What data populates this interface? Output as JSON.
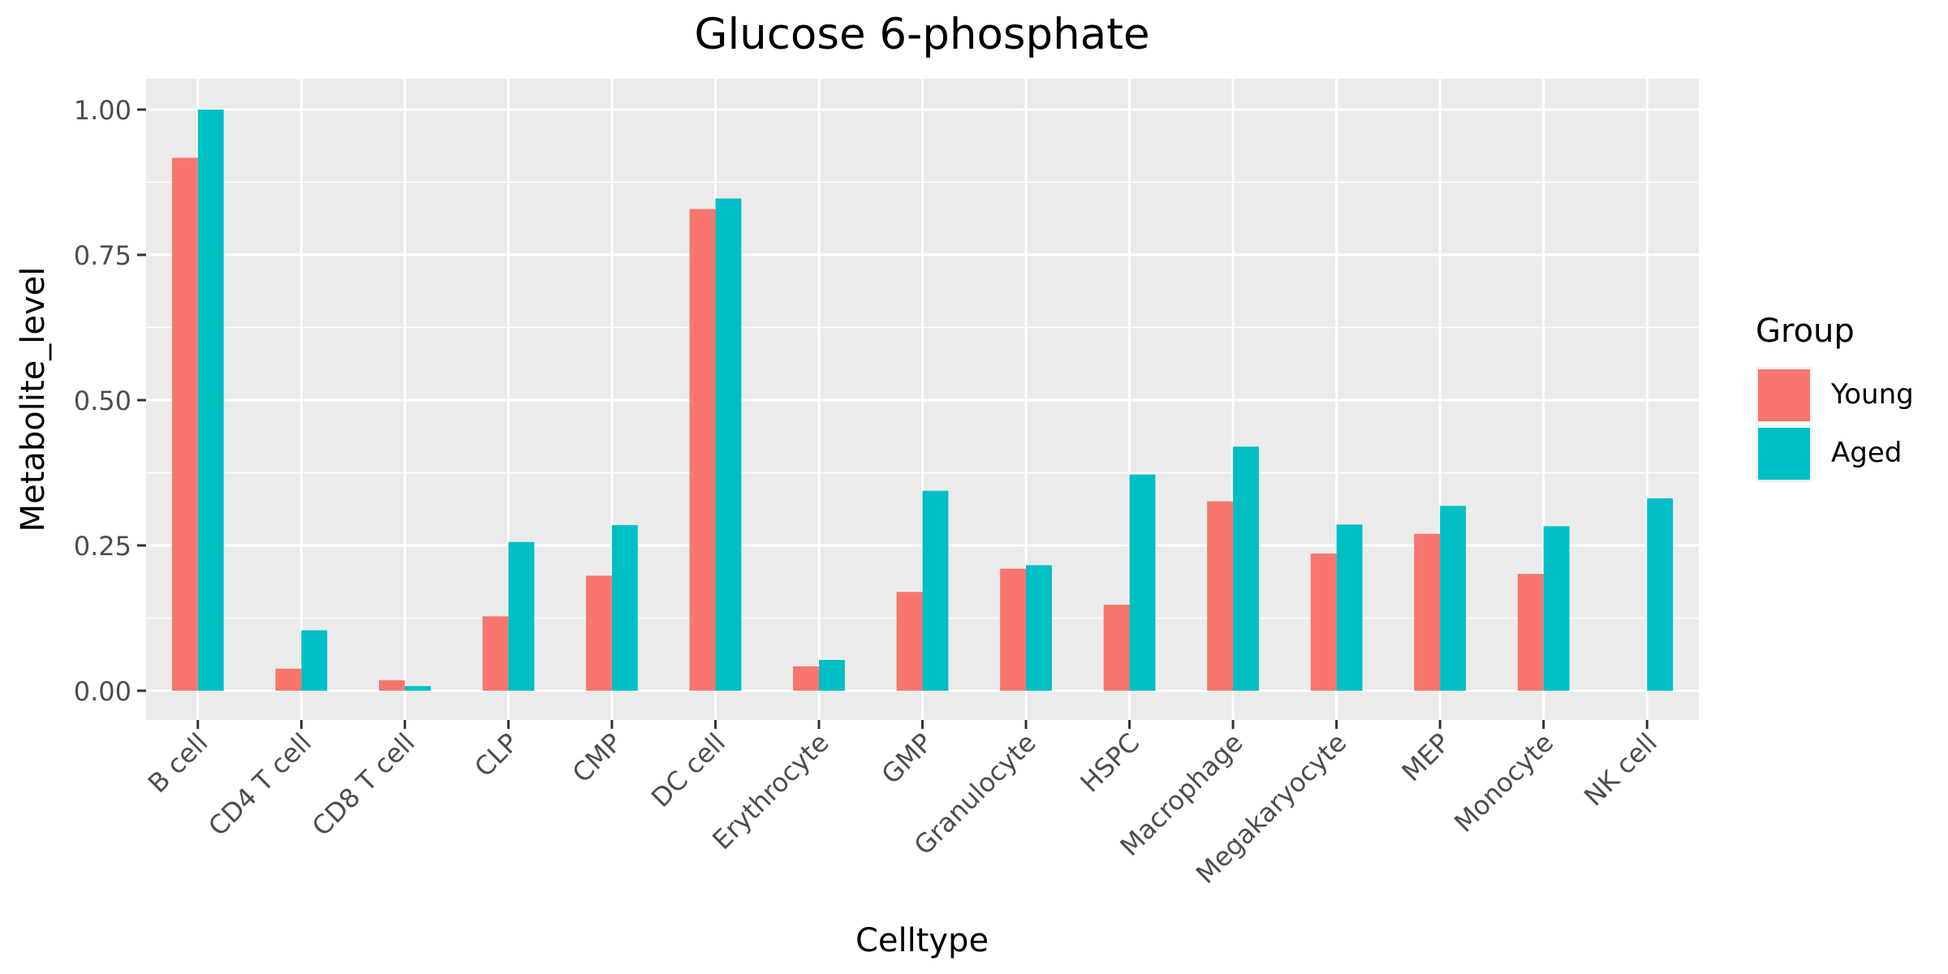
{
  "chart_data": {
    "type": "bar",
    "title": "Glucose 6-phosphate",
    "xlabel": "Celltype",
    "ylabel": "Metabolite_level",
    "ylim": [
      -0.05,
      1.05
    ],
    "yticks": [
      0.0,
      0.25,
      0.5,
      0.75,
      1.0
    ],
    "ytick_labels": [
      "0.00",
      "0.25",
      "0.50",
      "0.75",
      "1.00"
    ],
    "grid": true,
    "legend": {
      "title": "Group",
      "position": "right"
    },
    "categories": [
      "B cell",
      "CD4 T cell",
      "CD8 T cell",
      "CLP",
      "CMP",
      "DC cell",
      "Erythrocyte",
      "GMP",
      "Granulocyte",
      "HSPC",
      "Macrophage",
      "Megakaryocyte",
      "MEP",
      "Monocyte",
      "NK cell"
    ],
    "series": [
      {
        "name": "Young",
        "color": "#F8766D",
        "values": [
          0.917,
          0.038,
          0.018,
          0.128,
          0.198,
          0.829,
          0.042,
          0.17,
          0.21,
          0.148,
          0.326,
          0.236,
          0.27,
          0.201,
          null
        ]
      },
      {
        "name": "Aged",
        "color": "#00BFC4",
        "values": [
          1.0,
          0.104,
          0.008,
          0.256,
          0.285,
          0.847,
          0.053,
          0.344,
          0.216,
          0.372,
          0.42,
          0.286,
          0.318,
          0.283,
          0.331
        ]
      }
    ]
  }
}
